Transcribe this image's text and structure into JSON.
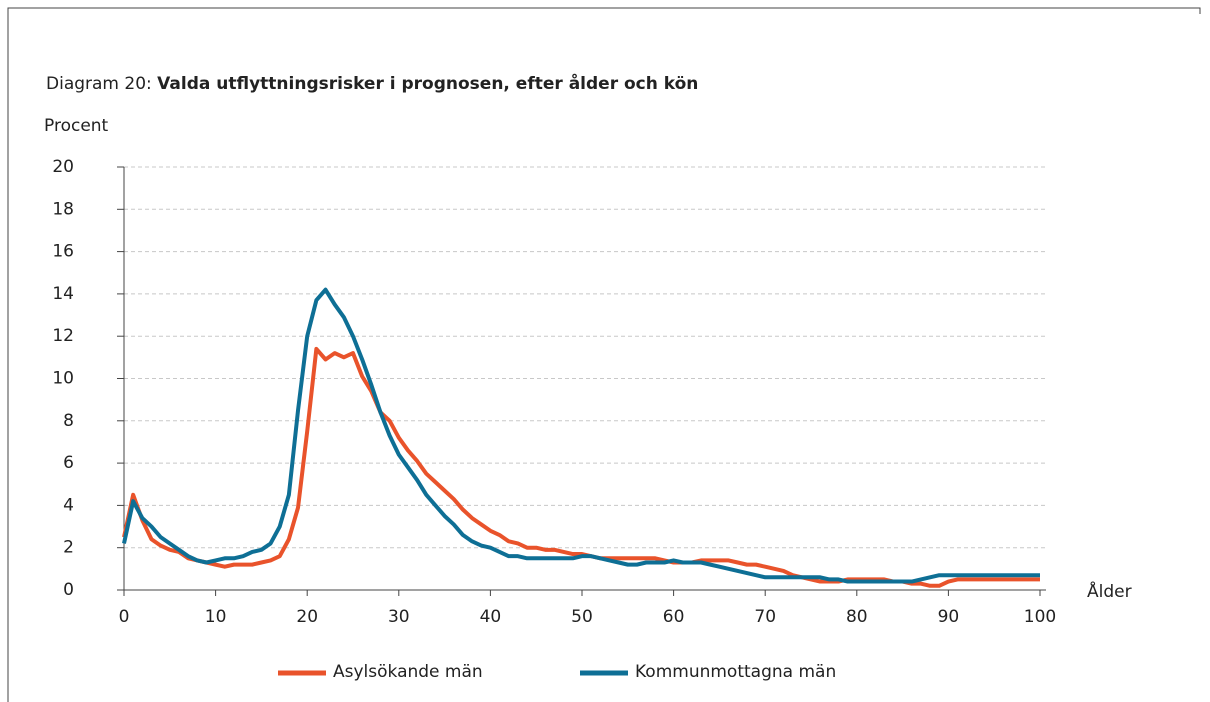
{
  "chart_data": {
    "type": "line",
    "title_label": "Diagram 20:",
    "title": "Valda utflyttningsrisker i prognosen, efter ålder och kön",
    "y_label": "Procent",
    "x_label": "Ålder",
    "x": [
      0,
      1,
      2,
      3,
      4,
      5,
      6,
      7,
      8,
      9,
      10,
      11,
      12,
      13,
      14,
      15,
      16,
      17,
      18,
      19,
      20,
      21,
      22,
      23,
      24,
      25,
      26,
      27,
      28,
      29,
      30,
      31,
      32,
      33,
      34,
      35,
      36,
      37,
      38,
      39,
      40,
      41,
      42,
      43,
      44,
      45,
      46,
      47,
      48,
      49,
      50,
      51,
      52,
      53,
      54,
      55,
      56,
      57,
      58,
      59,
      60,
      61,
      62,
      63,
      64,
      65,
      66,
      67,
      68,
      69,
      70,
      71,
      72,
      73,
      74,
      75,
      76,
      77,
      78,
      79,
      80,
      81,
      82,
      83,
      84,
      85,
      86,
      87,
      88,
      89,
      90,
      91,
      92,
      93,
      94,
      95,
      96,
      97,
      98,
      99,
      100
    ],
    "series": [
      {
        "name": "Asylsökande män",
        "color": "#e9532b",
        "values": [
          2.5,
          4.5,
          3.3,
          2.4,
          2.1,
          1.9,
          1.8,
          1.5,
          1.4,
          1.3,
          1.2,
          1.1,
          1.2,
          1.2,
          1.2,
          1.3,
          1.4,
          1.6,
          2.4,
          3.9,
          7.5,
          11.4,
          10.9,
          11.2,
          11.0,
          11.2,
          10.1,
          9.4,
          8.4,
          8.0,
          7.2,
          6.6,
          6.1,
          5.5,
          5.1,
          4.7,
          4.3,
          3.8,
          3.4,
          3.1,
          2.8,
          2.6,
          2.3,
          2.2,
          2.0,
          2.0,
          1.9,
          1.9,
          1.8,
          1.7,
          1.7,
          1.6,
          1.5,
          1.5,
          1.5,
          1.5,
          1.5,
          1.5,
          1.5,
          1.4,
          1.3,
          1.3,
          1.3,
          1.4,
          1.4,
          1.4,
          1.4,
          1.3,
          1.2,
          1.2,
          1.1,
          1.0,
          0.9,
          0.7,
          0.6,
          0.5,
          0.4,
          0.4,
          0.4,
          0.5,
          0.5,
          0.5,
          0.5,
          0.5,
          0.4,
          0.4,
          0.3,
          0.3,
          0.2,
          0.2,
          0.4,
          0.5,
          0.5,
          0.5,
          0.5,
          0.5,
          0.5,
          0.5,
          0.5,
          0.5,
          0.5
        ]
      },
      {
        "name": "Kommunmottagna män",
        "color": "#0e6f95",
        "values": [
          2.2,
          4.2,
          3.4,
          3.0,
          2.5,
          2.2,
          1.9,
          1.6,
          1.4,
          1.3,
          1.4,
          1.5,
          1.5,
          1.6,
          1.8,
          1.9,
          2.2,
          3.0,
          4.5,
          8.5,
          12.0,
          13.7,
          14.2,
          13.5,
          12.9,
          12.0,
          10.9,
          9.7,
          8.4,
          7.3,
          6.4,
          5.8,
          5.2,
          4.5,
          4.0,
          3.5,
          3.1,
          2.6,
          2.3,
          2.1,
          2.0,
          1.8,
          1.6,
          1.6,
          1.5,
          1.5,
          1.5,
          1.5,
          1.5,
          1.5,
          1.6,
          1.6,
          1.5,
          1.4,
          1.3,
          1.2,
          1.2,
          1.3,
          1.3,
          1.3,
          1.4,
          1.3,
          1.3,
          1.3,
          1.2,
          1.1,
          1.0,
          0.9,
          0.8,
          0.7,
          0.6,
          0.6,
          0.6,
          0.6,
          0.6,
          0.6,
          0.6,
          0.5,
          0.5,
          0.4,
          0.4,
          0.4,
          0.4,
          0.4,
          0.4,
          0.4,
          0.4,
          0.5,
          0.6,
          0.7,
          0.7,
          0.7,
          0.7,
          0.7,
          0.7,
          0.7,
          0.7,
          0.7,
          0.7,
          0.7,
          0.7
        ]
      }
    ],
    "xlim": [
      0,
      100
    ],
    "xticks": [
      0,
      10,
      20,
      30,
      40,
      50,
      60,
      70,
      80,
      90,
      100
    ],
    "ylim": [
      0,
      20
    ],
    "yticks": [
      0,
      2,
      4,
      6,
      8,
      10,
      12,
      14,
      16,
      18,
      20
    ],
    "grid": true,
    "legend": "bottom"
  }
}
